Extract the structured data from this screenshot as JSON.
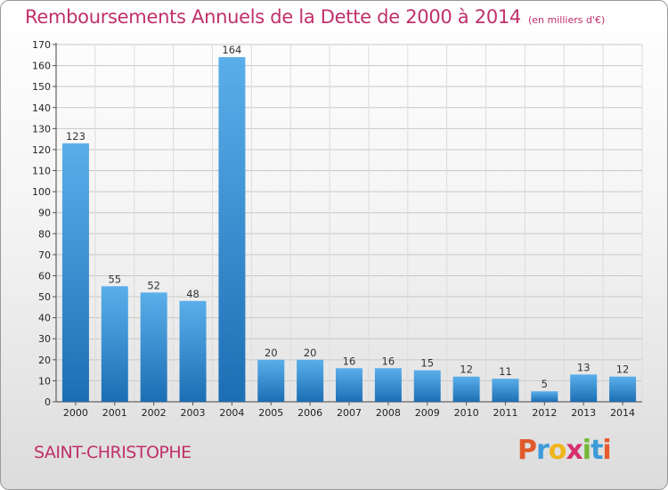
{
  "title": "Remboursements Annuels de la Dette de 2000 à 2014",
  "subtitle": "(en milliers d'€)",
  "commune": "SAINT-CHRISTOPHE",
  "brand": {
    "letters": [
      "P",
      "r",
      "o",
      "x",
      "i",
      "t",
      "i"
    ],
    "colors": [
      "#e05a2a",
      "#3c9ad8",
      "#f0b51c",
      "#d6306f",
      "#73b834",
      "#3c9ad8",
      "#e85a2c"
    ]
  },
  "colors": {
    "bar_light": "#5aafea",
    "bar_dark": "#1c6eb4",
    "title": "#c0306a"
  },
  "chart_data": {
    "type": "bar",
    "categories": [
      "2000",
      "2001",
      "2002",
      "2003",
      "2004",
      "2005",
      "2006",
      "2007",
      "2008",
      "2009",
      "2010",
      "2011",
      "2012",
      "2013",
      "2014"
    ],
    "values": [
      123,
      55,
      52,
      48,
      164,
      20,
      20,
      16,
      16,
      15,
      12,
      11,
      5,
      13,
      12
    ],
    "ylim": [
      0,
      170
    ],
    "yticks": [
      0,
      10,
      20,
      30,
      40,
      50,
      60,
      70,
      80,
      90,
      100,
      110,
      120,
      130,
      140,
      150,
      160,
      170
    ],
    "grid": true,
    "legend": "none"
  }
}
